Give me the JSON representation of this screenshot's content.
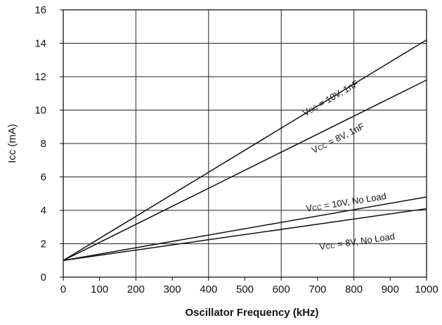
{
  "chart_data": {
    "type": "line",
    "title": "",
    "xlabel": "Oscillator  Frequency  (kHz)",
    "ylabel": "Icc (mA)",
    "xlim": [
      0,
      1000
    ],
    "ylim": [
      0,
      16
    ],
    "x_ticks": [
      "0",
      "100",
      "200",
      "300",
      "400",
      "500",
      "600",
      "700",
      "800",
      "900",
      "1000"
    ],
    "y_ticks": [
      "0",
      "2",
      "4",
      "6",
      "8",
      "10",
      "12",
      "14",
      "16"
    ],
    "grid": true,
    "legend": "none",
    "series": [
      {
        "main": "V",
        "sub": "CC",
        "rest": " = 10V, 1nF",
        "x": [
          0,
          1000
        ],
        "y": [
          1.0,
          14.2
        ],
        "label_x": 740,
        "label_y": 10.55,
        "label_angle": -30
      },
      {
        "main": "V",
        "sub": "CC",
        "rest": " = 8V, 1nF",
        "x": [
          0,
          1000
        ],
        "y": [
          1.0,
          11.8
        ],
        "label_x": 760,
        "label_y": 8.15,
        "label_angle": -26
      },
      {
        "main": "V",
        "sub": "CC",
        "rest": " = 10V, No Load",
        "x": [
          0,
          1000
        ],
        "y": [
          1.0,
          4.8
        ],
        "label_x": 780,
        "label_y": 4.3,
        "label_angle": -9
      },
      {
        "main": "V",
        "sub": "CC",
        "rest": " = 8V, No Load",
        "x": [
          0,
          1000
        ],
        "y": [
          1.0,
          4.1
        ],
        "label_x": 810,
        "label_y": 1.95,
        "label_angle": -8
      }
    ]
  }
}
